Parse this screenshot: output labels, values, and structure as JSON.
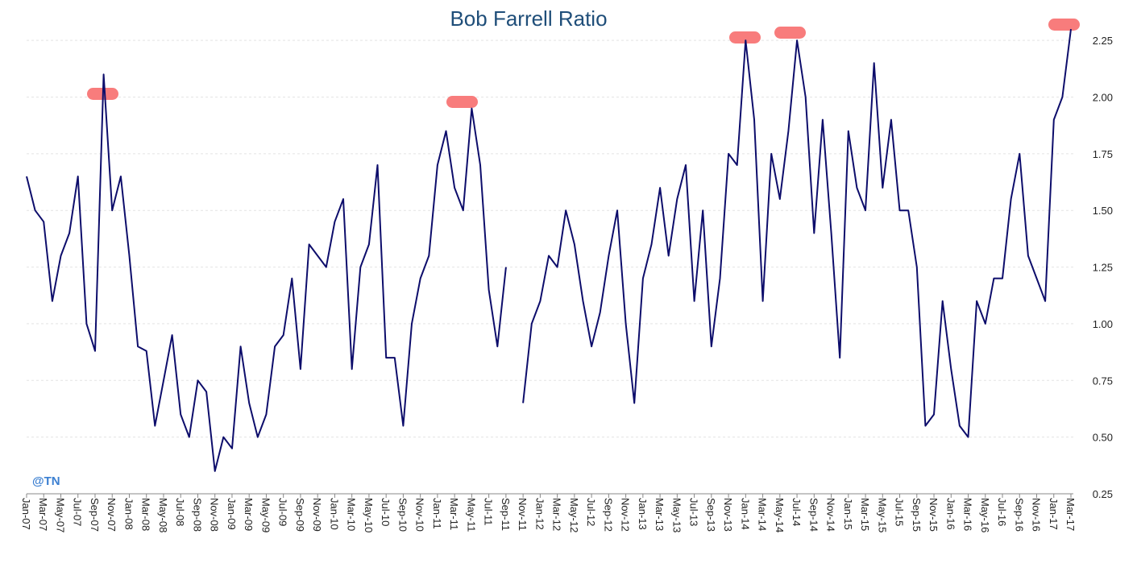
{
  "chart_data": {
    "type": "line",
    "title": "Bob Farrell Ratio",
    "watermark": "@TN",
    "categories": [
      "Jan-07",
      null,
      "Mar-07",
      null,
      "May-07",
      null,
      "Jul-07",
      null,
      "Sep-07",
      null,
      "Nov-07",
      null,
      "Jan-08",
      null,
      "Mar-08",
      null,
      "May-08",
      null,
      "Jul-08",
      null,
      "Sep-08",
      null,
      "Nov-08",
      null,
      "Jan-09",
      null,
      "Mar-09",
      null,
      "May-09",
      null,
      "Jul-09",
      null,
      "Sep-09",
      null,
      "Nov-09",
      null,
      "Jan-10",
      null,
      "Mar-10",
      null,
      "May-10",
      null,
      "Jul-10",
      null,
      "Sep-10",
      null,
      "Nov-10",
      null,
      "Jan-11",
      null,
      "Mar-11",
      null,
      "May-11",
      null,
      "Jul-11",
      null,
      "Sep-11",
      null,
      "Nov-11",
      null,
      "Jan-12",
      null,
      "Mar-12",
      null,
      "May-12",
      null,
      "Jul-12",
      null,
      "Sep-12",
      null,
      "Nov-12",
      null,
      "Jan-13",
      null,
      "Mar-13",
      null,
      "May-13",
      null,
      "Jul-13",
      null,
      "Sep-13",
      null,
      "Nov-13",
      null,
      "Jan-14",
      null,
      "Mar-14",
      null,
      "May-14",
      null,
      "Jul-14",
      null,
      "Sep-14",
      null,
      "Nov-14",
      null,
      "Jan-15",
      null,
      "Mar-15",
      null,
      "May-15",
      null,
      "Jul-15",
      null,
      "Sep-15",
      null,
      "Nov-15",
      null,
      "Jan-16",
      null,
      "Mar-16",
      null,
      "May-16",
      null,
      "Jul-16",
      null,
      "Sep-16",
      null,
      "Nov-16",
      null,
      "Jan-17",
      null,
      "Mar-17"
    ],
    "series": [
      {
        "name": "Bob Farrell Ratio",
        "color": "#0d0d6b",
        "values": [
          1.65,
          1.5,
          1.45,
          1.1,
          1.3,
          1.4,
          1.65,
          1.0,
          0.88,
          2.1,
          1.5,
          1.65,
          1.3,
          0.9,
          0.88,
          0.55,
          0.75,
          0.95,
          0.6,
          0.5,
          0.75,
          0.7,
          0.35,
          0.5,
          0.45,
          0.9,
          0.65,
          0.5,
          0.6,
          0.9,
          0.95,
          1.2,
          0.8,
          1.35,
          1.3,
          1.25,
          1.45,
          1.55,
          0.8,
          1.25,
          1.35,
          1.7,
          0.85,
          0.85,
          0.55,
          1.0,
          1.2,
          1.3,
          1.7,
          1.85,
          1.6,
          1.5,
          1.95,
          1.7,
          1.15,
          0.9,
          1.25,
          null,
          0.65,
          1.0,
          1.1,
          1.3,
          1.25,
          1.5,
          1.35,
          1.1,
          0.9,
          1.05,
          1.3,
          1.5,
          1.0,
          0.65,
          1.2,
          1.35,
          1.6,
          1.3,
          1.55,
          1.7,
          1.1,
          1.5,
          0.9,
          1.2,
          1.75,
          1.7,
          2.25,
          1.9,
          1.1,
          1.75,
          1.55,
          1.85,
          2.25,
          2.0,
          1.4,
          1.9,
          1.4,
          0.85,
          1.85,
          1.6,
          1.5,
          2.15,
          1.6,
          1.9,
          1.5,
          1.5,
          1.25,
          0.55,
          0.6,
          1.1,
          0.8,
          0.55,
          0.5,
          1.1,
          1.0,
          1.2,
          1.2,
          1.55,
          1.75,
          1.3,
          1.2,
          1.1,
          1.9,
          2.0,
          2.3
        ]
      }
    ],
    "ylim": [
      0.25,
      2.35
    ],
    "yticks": [
      0.25,
      {
        "value": 0.5,
        "label": "0.50"
      },
      0.75,
      {
        "value": 1,
        "label": "1.00"
      },
      1.25,
      {
        "value": 1.5,
        "label": "1.50"
      },
      1.75,
      {
        "value": 2,
        "label": "2.00"
      },
      2.25
    ],
    "grid": true
  }
}
